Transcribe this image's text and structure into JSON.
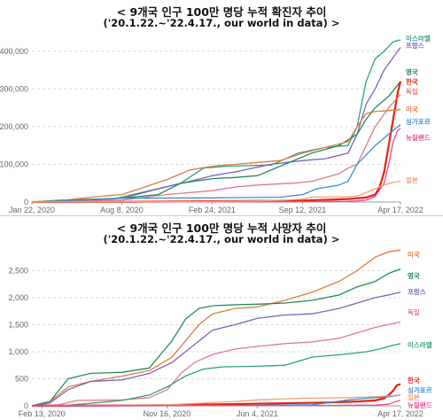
{
  "charts": [
    {
      "title": "< 9개국 인구 100만 명당 누적 확진자 추이",
      "subtitle": "('20.1.22.~'22.4.17., our world in data) >",
      "chart_data": {
        "type": "line",
        "title": "9개국 인구 100만 명당 누적 확진자 추이",
        "subtitle": "('20.1.22.~'22.4.17., our world in data)",
        "xlabel": "",
        "ylabel": "",
        "xlim": [
          0,
          816
        ],
        "ylim": [
          0,
          430000
        ],
        "y_ticks": [
          0,
          100000,
          200000,
          300000,
          400000
        ],
        "y_tick_labels": [
          "0",
          "100,000",
          "200,000",
          "300,000",
          "400,000"
        ],
        "x_ticks": [
          0,
          199,
          399,
          599,
          816
        ],
        "x_tick_labels": [
          "Jan 22, 2020",
          "Aug 8, 2020",
          "Feb 24, 2021",
          "Sep 12, 2021",
          "Apr 17, 2022"
        ],
        "grid": true,
        "legend": "inline-right",
        "series": [
          {
            "name": "이스라엘",
            "color": "#2e9e83",
            "x": [
              0,
              60,
              180,
              260,
              330,
              380,
              430,
              530,
              590,
              650,
              700,
              720,
              740,
              760,
              780,
              800,
              816
            ],
            "y": [
              0,
              2000,
              8000,
              30000,
              50000,
              90000,
              95000,
              98000,
              130000,
              145000,
              150000,
              200000,
              320000,
              380000,
              400000,
              425000,
              430000
            ]
          },
          {
            "name": "프랑스",
            "color": "#7b62b8",
            "x": [
              0,
              60,
              200,
              280,
              350,
              400,
              450,
              530,
              600,
              650,
              700,
              720,
              740,
              760,
              780,
              816
            ],
            "y": [
              0,
              2000,
              10000,
              35000,
              55000,
              70000,
              80000,
              100000,
              110000,
              115000,
              130000,
              180000,
              260000,
              300000,
              350000,
              410000
            ]
          },
          {
            "name": "영국",
            "color": "#1f8a5f",
            "x": [
              0,
              60,
              200,
              280,
              330,
              400,
              450,
              500,
              560,
              620,
              680,
              720,
              740,
              760,
              790,
              816
            ],
            "y": [
              0,
              5000,
              10000,
              20000,
              50000,
              62000,
              65000,
              70000,
              100000,
              130000,
              150000,
              180000,
              220000,
              250000,
              280000,
              320000
            ]
          },
          {
            "name": "한국",
            "color": "#e8230c",
            "x": [
              0,
              200,
              400,
              600,
              700,
              740,
              760,
              770,
              780,
              790,
              800,
              810,
              816
            ],
            "y": [
              0,
              500,
              2000,
              4000,
              8000,
              12000,
              20000,
              40000,
              80000,
              150000,
              220000,
              290000,
              320000
            ]
          },
          {
            "name": "독일",
            "color": "#e07a84",
            "x": [
              0,
              100,
              200,
              300,
              400,
              450,
              500,
              580,
              620,
              680,
              700,
              720,
              740,
              760,
              790,
              816
            ],
            "y": [
              0,
              2000,
              5000,
              20000,
              30000,
              40000,
              45000,
              50000,
              55000,
              75000,
              90000,
              100000,
              150000,
              200000,
              250000,
              285000
            ]
          },
          {
            "name": "미국",
            "color": "#e07a3c",
            "x": [
              0,
              70,
              150,
              200,
              250,
              300,
              350,
              400,
              450,
              500,
              550,
              600,
              650,
              700,
              720,
              740,
              760,
              816
            ],
            "y": [
              0,
              5000,
              15000,
              20000,
              40000,
              60000,
              85000,
              95000,
              100000,
              105000,
              110000,
              130000,
              145000,
              160000,
              200000,
              235000,
              240000,
              245000
            ]
          },
          {
            "name": "싱가포르",
            "color": "#3b8fd0",
            "x": [
              0,
              100,
              200,
              400,
              550,
              600,
              630,
              680,
              700,
              720,
              760,
              800,
              816
            ],
            "y": [
              0,
              5000,
              10000,
              11000,
              13000,
              20000,
              35000,
              45000,
              55000,
              100000,
              150000,
              190000,
              205000
            ]
          },
          {
            "name": "뉴질랜드",
            "color": "#e8499a",
            "x": [
              0,
              400,
              600,
              700,
              720,
              740,
              760,
              780,
              790,
              800,
              810,
              816
            ],
            "y": [
              0,
              500,
              1000,
              2000,
              3000,
              5000,
              15000,
              50000,
              100000,
              160000,
              190000,
              195000
            ]
          },
          {
            "name": "일본",
            "color": "#f0a07a",
            "x": [
              0,
              200,
              400,
              500,
              560,
              600,
              620,
              700,
              720,
              740,
              760,
              780,
              800,
              816
            ],
            "y": [
              0,
              500,
              1500,
              3000,
              5000,
              8000,
              13000,
              14000,
              16000,
              25000,
              35000,
              45000,
              52000,
              55000
            ]
          }
        ]
      }
    },
    {
      "title": "< 9개국 인구 100만 명당 누적 사망자 추이",
      "subtitle": "('20.1.22.~'22.4.17., our world in data) >",
      "chart_data": {
        "type": "line",
        "title": "9개국 인구 100만 명당 누적 사망자 추이",
        "subtitle": "('20.1.22.~'22.4.17., our world in data)",
        "xlabel": "",
        "ylabel": "",
        "xlim": [
          0,
          816
        ],
        "ylim": [
          0,
          2900
        ],
        "y_ticks": [
          0,
          500,
          1000,
          1500,
          2000,
          2500
        ],
        "y_tick_labels": [
          "0",
          "500",
          "1,000",
          "1,500",
          "2,000",
          "2,500"
        ],
        "x_ticks": [
          22,
          299,
          499,
          816
        ],
        "x_tick_labels": [
          "Feb 13, 2020",
          "Nov 16, 2020",
          "Jun 4, 2021",
          "Apr 17, 2022"
        ],
        "grid": true,
        "legend": "inline-right",
        "series": [
          {
            "name": "미국",
            "color": "#e07a3c",
            "x": [
              0,
              40,
              80,
              130,
              200,
              260,
              310,
              340,
              370,
              400,
              450,
              500,
              560,
              620,
              680,
              720,
              760,
              790,
              816
            ],
            "y": [
              0,
              80,
              350,
              450,
              550,
              650,
              900,
              1200,
              1500,
              1700,
              1800,
              1830,
              1950,
              2100,
              2300,
              2500,
              2750,
              2850,
              2880
            ]
          },
          {
            "name": "영국",
            "color": "#1f8a5f",
            "x": [
              0,
              40,
              80,
              130,
              200,
              260,
              290,
              310,
              340,
              370,
              400,
              450,
              500,
              560,
              620,
              680,
              720,
              760,
              790,
              816
            ],
            "y": [
              0,
              80,
              500,
              600,
              620,
              700,
              1000,
              1200,
              1600,
              1800,
              1850,
              1870,
              1880,
              1900,
              1950,
              2050,
              2200,
              2300,
              2450,
              2530
            ]
          },
          {
            "name": "프랑스",
            "color": "#7b62b8",
            "x": [
              0,
              40,
              80,
              130,
              200,
              260,
              310,
              340,
              370,
              400,
              450,
              500,
              560,
              620,
              680,
              720,
              760,
              790,
              816
            ],
            "y": [
              0,
              50,
              300,
              450,
              480,
              600,
              800,
              1000,
              1200,
              1400,
              1500,
              1620,
              1680,
              1700,
              1800,
              1900,
              2000,
              2050,
              2100
            ]
          },
          {
            "name": "독일",
            "color": "#e07a84",
            "x": [
              0,
              60,
              100,
              200,
              260,
              300,
              330,
              360,
              400,
              450,
              500,
              560,
              620,
              680,
              720,
              760,
              816
            ],
            "y": [
              0,
              20,
              100,
              110,
              150,
              300,
              600,
              800,
              950,
              1050,
              1100,
              1150,
              1180,
              1250,
              1350,
              1450,
              1550
            ]
          },
          {
            "name": "이스라엘",
            "color": "#2e9e83",
            "x": [
              0,
              80,
              200,
              260,
              300,
              340,
              380,
              420,
              500,
              560,
              620,
              700,
              740,
              770,
              800,
              816
            ],
            "y": [
              0,
              10,
              100,
              200,
              350,
              550,
              680,
              720,
              730,
              750,
              900,
              960,
              1000,
              1050,
              1120,
              1150
            ]
          },
          {
            "name": "한국",
            "color": "#e8230c",
            "x": [
              0,
              300,
              500,
              650,
              720,
              760,
              780,
              790,
              800,
              808,
              816
            ],
            "y": [
              0,
              10,
              40,
              60,
              80,
              100,
              140,
              200,
              280,
              380,
              400
            ]
          },
          {
            "name": "싱가포르",
            "color": "#3b8fd0",
            "x": [
              0,
              300,
              500,
              620,
              660,
              700,
              740,
              780,
              800,
              816
            ],
            "y": [
              0,
              5,
              10,
              20,
              60,
              110,
              140,
              160,
              180,
              200
            ]
          },
          {
            "name": "일본",
            "color": "#f0a07a",
            "x": [
              0,
              100,
              300,
              450,
              500,
              560,
              600,
              700,
              760,
              800,
              816
            ],
            "y": [
              0,
              5,
              20,
              80,
              110,
              130,
              140,
              150,
              170,
              190,
              200
            ]
          },
          {
            "name": "뉴질랜드",
            "color": "#e8499a",
            "x": [
              0,
              300,
              600,
              700,
              760,
              790,
              800,
              810,
              816
            ],
            "y": [
              0,
              5,
              5,
              10,
              15,
              30,
              60,
              90,
              100
            ]
          }
        ]
      }
    }
  ]
}
